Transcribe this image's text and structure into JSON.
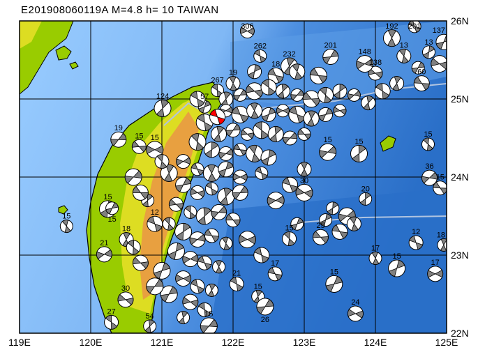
{
  "title": "E201908060119A  M=4.8  h=  10  TAIWAN",
  "map": {
    "lon_range": [
      119,
      125
    ],
    "lat_range": [
      22,
      26
    ],
    "lon_ticks": [
      "119E",
      "120E",
      "121E",
      "122E",
      "123E",
      "124E",
      "125E"
    ],
    "lat_ticks": [
      "26N",
      "25N",
      "24N",
      "23N",
      "22N"
    ],
    "colors": {
      "shallow_sea": "#99ccff",
      "mid_sea": "#5c9de6",
      "deep_sea": "#2a6fc8",
      "lowland": "#99cc00",
      "hills": "#dddd22",
      "mountain": "#e8a040",
      "mechanism_fill": "#808080",
      "target_event": "#ff0000"
    },
    "target_event": {
      "lon": 121.78,
      "lat": 24.77
    },
    "events": [
      [
        124.55,
        25.93,
        "201"
      ],
      [
        124.23,
        25.78,
        "192"
      ],
      [
        124.96,
        25.73,
        "137"
      ],
      [
        122.2,
        25.87,
        "306"
      ],
      [
        122.38,
        25.55,
        "262"
      ],
      [
        122.79,
        25.42,
        "232"
      ],
      [
        123.37,
        25.54,
        "201"
      ],
      [
        124.0,
        25.33,
        "138"
      ],
      [
        121.78,
        25.11,
        "267"
      ],
      [
        121.01,
        24.88,
        "124"
      ],
      [
        120.39,
        24.48,
        "19"
      ],
      [
        120.68,
        24.39,
        "15"
      ],
      [
        124.74,
        24.42,
        "15"
      ],
      [
        123.77,
        24.3,
        "15"
      ],
      [
        124.76,
        23.99,
        "36"
      ],
      [
        124.91,
        23.86,
        "15"
      ],
      [
        119.66,
        23.37,
        "15"
      ],
      [
        120.24,
        23.59,
        "15"
      ],
      [
        120.19,
        23.01,
        "21"
      ],
      [
        122.59,
        22.76,
        "17"
      ],
      [
        124.0,
        22.96,
        "17"
      ],
      [
        124.3,
        22.83,
        "15"
      ],
      [
        124.84,
        22.76,
        "17"
      ],
      [
        124.57,
        23.16,
        "12"
      ],
      [
        124.96,
        23.13,
        "18"
      ],
      [
        123.42,
        22.63,
        "15"
      ],
      [
        123.72,
        22.25,
        "24"
      ],
      [
        122.05,
        22.63,
        "21"
      ],
      [
        122.35,
        22.47,
        "15"
      ],
      [
        122.45,
        22.34,
        "26"
      ],
      [
        120.49,
        22.43,
        "30"
      ],
      [
        120.29,
        22.14,
        "27"
      ],
      [
        120.83,
        22.09,
        "54"
      ],
      [
        121.66,
        22.09,
        "15"
      ],
      [
        123.23,
        23.23,
        "25"
      ],
      [
        122.79,
        23.21,
        "15"
      ],
      [
        123.86,
        23.72,
        "20"
      ],
      [
        123.33,
        24.32,
        "15"
      ],
      [
        124.65,
        25.2,
        "60"
      ],
      [
        124.4,
        25.55,
        "13"
      ],
      [
        124.75,
        25.6,
        "13"
      ],
      [
        123.85,
        25.45,
        "148"
      ],
      [
        122.6,
        25.3,
        "18"
      ],
      [
        122.0,
        25.2,
        "19"
      ],
      [
        121.6,
        24.9,
        "57"
      ],
      [
        120.9,
        24.35,
        "15"
      ],
      [
        120.9,
        23.4,
        "12"
      ],
      [
        120.5,
        23.2,
        "18"
      ],
      [
        120.3,
        23.6,
        "15"
      ],
      [
        123.0,
        23.8,
        "30"
      ],
      [
        121.5,
        25.0,
        ""
      ],
      [
        121.9,
        25.0,
        ""
      ],
      [
        122.1,
        25.05,
        ""
      ],
      [
        122.3,
        25.1,
        ""
      ],
      [
        122.5,
        25.15,
        ""
      ],
      [
        122.7,
        25.1,
        ""
      ],
      [
        122.9,
        25.05,
        ""
      ],
      [
        123.1,
        25.0,
        ""
      ],
      [
        123.3,
        25.05,
        ""
      ],
      [
        123.5,
        25.1,
        ""
      ],
      [
        123.7,
        25.05,
        ""
      ],
      [
        123.2,
        25.3,
        ""
      ],
      [
        122.9,
        25.35,
        ""
      ],
      [
        122.3,
        25.35,
        ""
      ],
      [
        121.9,
        24.85,
        ""
      ],
      [
        122.1,
        24.8,
        ""
      ],
      [
        122.3,
        24.85,
        ""
      ],
      [
        122.5,
        24.8,
        ""
      ],
      [
        122.7,
        24.85,
        ""
      ],
      [
        122.9,
        24.8,
        ""
      ],
      [
        123.1,
        24.75,
        ""
      ],
      [
        123.3,
        24.8,
        ""
      ],
      [
        123.5,
        24.85,
        ""
      ],
      [
        121.6,
        24.7,
        ""
      ],
      [
        121.8,
        24.55,
        ""
      ],
      [
        122.0,
        24.6,
        ""
      ],
      [
        122.2,
        24.55,
        ""
      ],
      [
        122.4,
        24.6,
        ""
      ],
      [
        122.6,
        24.55,
        ""
      ],
      [
        122.8,
        24.5,
        ""
      ],
      [
        123.0,
        24.55,
        ""
      ],
      [
        121.5,
        24.45,
        ""
      ],
      [
        121.7,
        24.35,
        ""
      ],
      [
        121.9,
        24.3,
        ""
      ],
      [
        122.1,
        24.35,
        ""
      ],
      [
        122.3,
        24.3,
        ""
      ],
      [
        122.5,
        24.25,
        ""
      ],
      [
        121.3,
        24.2,
        ""
      ],
      [
        121.5,
        24.1,
        ""
      ],
      [
        121.7,
        24.05,
        ""
      ],
      [
        121.9,
        24.1,
        ""
      ],
      [
        122.1,
        24.0,
        ""
      ],
      [
        122.4,
        24.05,
        ""
      ],
      [
        121.1,
        24.05,
        ""
      ],
      [
        121.3,
        23.9,
        ""
      ],
      [
        121.5,
        23.8,
        ""
      ],
      [
        121.7,
        23.85,
        ""
      ],
      [
        121.9,
        23.75,
        ""
      ],
      [
        122.1,
        23.8,
        ""
      ],
      [
        121.2,
        23.65,
        ""
      ],
      [
        121.4,
        23.55,
        ""
      ],
      [
        121.6,
        23.5,
        ""
      ],
      [
        121.8,
        23.55,
        ""
      ],
      [
        122.0,
        23.45,
        ""
      ],
      [
        121.1,
        23.4,
        ""
      ],
      [
        121.3,
        23.3,
        ""
      ],
      [
        121.5,
        23.2,
        ""
      ],
      [
        121.7,
        23.25,
        ""
      ],
      [
        121.9,
        23.15,
        ""
      ],
      [
        121.2,
        23.05,
        ""
      ],
      [
        121.4,
        22.95,
        ""
      ],
      [
        121.6,
        22.9,
        ""
      ],
      [
        121.8,
        22.85,
        ""
      ],
      [
        121.0,
        22.8,
        ""
      ],
      [
        121.3,
        22.7,
        ""
      ],
      [
        121.5,
        22.6,
        ""
      ],
      [
        121.7,
        22.55,
        ""
      ],
      [
        121.1,
        22.5,
        ""
      ],
      [
        121.4,
        22.4,
        ""
      ],
      [
        121.6,
        22.3,
        ""
      ],
      [
        121.3,
        22.2,
        ""
      ],
      [
        120.9,
        22.6,
        ""
      ],
      [
        120.7,
        22.9,
        ""
      ],
      [
        120.6,
        23.1,
        ""
      ],
      [
        120.8,
        23.7,
        ""
      ],
      [
        120.6,
        24.0,
        ""
      ],
      [
        120.7,
        23.8,
        ""
      ],
      [
        121.0,
        24.2,
        ""
      ],
      [
        123.4,
        23.6,
        ""
      ],
      [
        123.6,
        23.5,
        ""
      ],
      [
        123.5,
        23.3,
        ""
      ],
      [
        123.7,
        23.4,
        ""
      ],
      [
        123.3,
        23.45,
        ""
      ],
      [
        122.6,
        23.7,
        ""
      ],
      [
        122.8,
        23.9,
        ""
      ],
      [
        123.0,
        24.1,
        ""
      ],
      [
        122.9,
        23.4,
        ""
      ],
      [
        122.2,
        23.2,
        ""
      ],
      [
        122.4,
        23.0,
        ""
      ],
      [
        124.3,
        25.2,
        ""
      ],
      [
        124.6,
        25.4,
        ""
      ],
      [
        124.9,
        25.45,
        ""
      ],
      [
        124.1,
        25.1,
        ""
      ],
      [
        123.9,
        24.95,
        ""
      ]
    ]
  }
}
